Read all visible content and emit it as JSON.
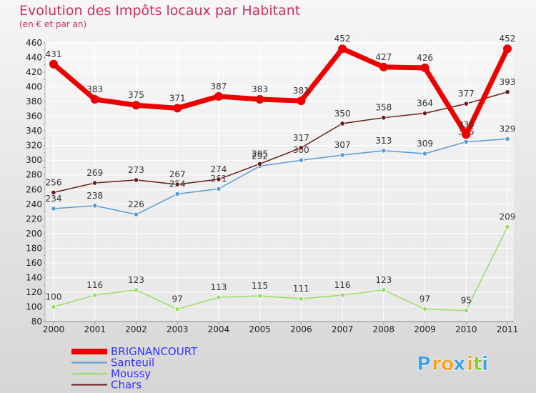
{
  "chart_data": {
    "type": "line",
    "title": "Evolution des Impôts locaux par Habitant",
    "subtitle": "(en € et par an)",
    "x": [
      "2000",
      "2001",
      "2002",
      "2003",
      "2004",
      "2005",
      "2006",
      "2007",
      "2008",
      "2009",
      "2010",
      "2011"
    ],
    "y_ticks": [
      "80",
      "100",
      "120",
      "140",
      "160",
      "180",
      "200",
      "220",
      "240",
      "260",
      "280",
      "300",
      "320",
      "340",
      "360",
      "380",
      "400",
      "420",
      "440",
      "460"
    ],
    "ylim": [
      80,
      460
    ],
    "grid": true,
    "legend_position": "bottom-left",
    "series": [
      {
        "name": "BRIGNANCOURT",
        "color": "#ee0000",
        "values": [
          431,
          383,
          375,
          371,
          387,
          383,
          381,
          452,
          427,
          426,
          335,
          452
        ],
        "labels": [
          "431",
          "383",
          "375",
          "371",
          "387",
          "383",
          "381",
          "452",
          "427",
          "426",
          "335",
          "452"
        ]
      },
      {
        "name": "Santeuil",
        "color": "#5b9bd5",
        "values": [
          234,
          238,
          226,
          254,
          261,
          292,
          300,
          307,
          313,
          309,
          325,
          329
        ],
        "labels": [
          "234",
          "238",
          "226",
          "254",
          "261",
          "292",
          "300",
          "307",
          "313",
          "309",
          "325",
          "329"
        ]
      },
      {
        "name": "Moussy",
        "color": "#99dd66",
        "values": [
          100,
          116,
          123,
          97,
          113,
          115,
          111,
          116,
          123,
          97,
          95,
          209
        ],
        "labels": [
          "100",
          "116",
          "123",
          "97",
          "113",
          "115",
          "111",
          "116",
          "123",
          "97",
          "95",
          "209"
        ]
      },
      {
        "name": "Chars",
        "color": "#6b1a1a",
        "values": [
          256,
          269,
          273,
          267,
          274,
          295,
          317,
          350,
          358,
          364,
          377,
          393
        ],
        "labels": [
          "256",
          "269",
          "273",
          "267",
          "274",
          "295",
          "317",
          "350",
          "358",
          "364",
          "377",
          "393"
        ]
      }
    ],
    "legend_colors": {
      "BRIGNANCOURT": "#3333ff",
      "Santeuil": "#3333ff",
      "Moussy": "#3333ff",
      "Chars": "#3333ff"
    }
  },
  "logo": {
    "text": "Proxiti",
    "letters": [
      "P",
      "r",
      "o",
      "x",
      "i",
      "t",
      "i"
    ],
    "colors": [
      "#3aa0e0",
      "#f0a020",
      "#f0a020",
      "#3aa0e0",
      "#f0a020",
      "#88cc33",
      "#3aa0e0"
    ]
  }
}
